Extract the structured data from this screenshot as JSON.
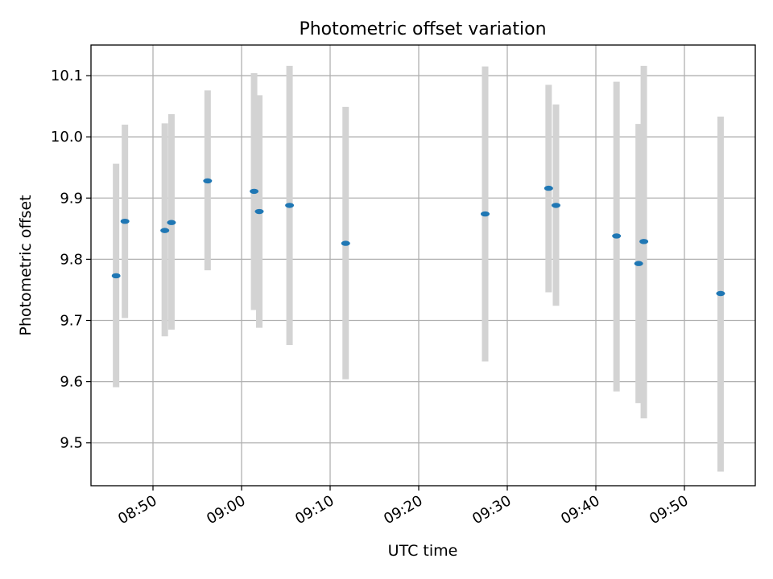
{
  "chart_data": {
    "type": "scatter",
    "title": "Photometric offset variation",
    "xlabel": "UTC time",
    "ylabel": "Photometric offset",
    "xlim": [
      "08:43",
      "09:58"
    ],
    "ylim": [
      9.43,
      10.15
    ],
    "grid": true,
    "x_ticks": [
      "08:50",
      "09:00",
      "09:10",
      "09:20",
      "09:30",
      "09:40",
      "09:50"
    ],
    "y_ticks": [
      9.5,
      9.6,
      9.7,
      9.8,
      9.9,
      10.0,
      10.1
    ],
    "y_tick_labels": [
      "9.5",
      "9.6",
      "9.7",
      "9.8",
      "9.9",
      "10.0",
      "10.1"
    ],
    "colors": {
      "marker": "#1f77b4",
      "errorbar": "#d3d3d3",
      "grid": "#b0b0b0"
    },
    "points": [
      {
        "t": "08:45:50",
        "y": 9.773,
        "ylow": 9.591,
        "yhigh": 9.956
      },
      {
        "t": "08:46:50",
        "y": 9.862,
        "ylow": 9.704,
        "yhigh": 10.02
      },
      {
        "t": "08:51:20",
        "y": 9.847,
        "ylow": 9.674,
        "yhigh": 10.022
      },
      {
        "t": "08:52:05",
        "y": 9.86,
        "ylow": 9.685,
        "yhigh": 10.037
      },
      {
        "t": "08:56:10",
        "y": 9.928,
        "ylow": 9.782,
        "yhigh": 10.076
      },
      {
        "t": "09:01:25",
        "y": 9.911,
        "ylow": 9.717,
        "yhigh": 10.104
      },
      {
        "t": "09:02:00",
        "y": 9.878,
        "ylow": 9.688,
        "yhigh": 10.068
      },
      {
        "t": "09:05:25",
        "y": 9.888,
        "ylow": 9.66,
        "yhigh": 10.116
      },
      {
        "t": "09:11:45",
        "y": 9.826,
        "ylow": 9.604,
        "yhigh": 10.049
      },
      {
        "t": "09:27:30",
        "y": 9.874,
        "ylow": 9.633,
        "yhigh": 10.115
      },
      {
        "t": "09:34:40",
        "y": 9.916,
        "ylow": 9.746,
        "yhigh": 10.085
      },
      {
        "t": "09:35:30",
        "y": 9.888,
        "ylow": 9.724,
        "yhigh": 10.053
      },
      {
        "t": "09:42:20",
        "y": 9.838,
        "ylow": 9.584,
        "yhigh": 10.09
      },
      {
        "t": "09:44:50",
        "y": 9.793,
        "ylow": 9.565,
        "yhigh": 10.021
      },
      {
        "t": "09:45:25",
        "y": 9.829,
        "ylow": 9.54,
        "yhigh": 10.116
      },
      {
        "t": "09:54:05",
        "y": 9.744,
        "ylow": 9.453,
        "yhigh": 10.033
      }
    ]
  }
}
